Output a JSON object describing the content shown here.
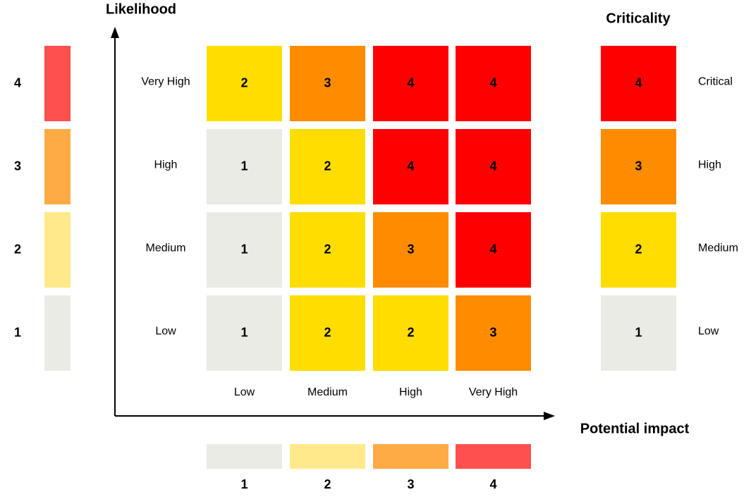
{
  "likelihood_axis": {
    "title": "Likelihood",
    "levels": [
      4,
      3,
      2,
      1
    ]
  },
  "impact_axis": {
    "title": "Potential impact",
    "levels": [
      1,
      2,
      3,
      4
    ]
  },
  "matrix": {
    "row_labels": [
      "Very High",
      "High",
      "Medium",
      "Low"
    ],
    "column_labels": [
      "Low",
      "Medium",
      "High",
      "Very High"
    ],
    "rows": [
      [
        2,
        3,
        4,
        4
      ],
      [
        1,
        2,
        4,
        4
      ],
      [
        1,
        2,
        3,
        4
      ],
      [
        1,
        2,
        2,
        3
      ]
    ]
  },
  "criticality": {
    "title": "Criticality",
    "levels": [
      {
        "value": 4,
        "label": "Critical"
      },
      {
        "value": 3,
        "label": "High"
      },
      {
        "value": 2,
        "label": "Medium"
      },
      {
        "value": 1,
        "label": "Low"
      }
    ]
  }
}
